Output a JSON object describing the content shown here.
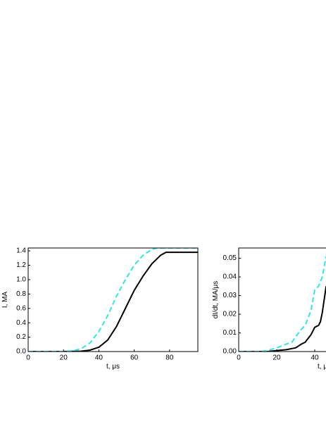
{
  "chart_data": [
    {
      "type": "line",
      "x_label": "t, μs",
      "y_label": "I, MA",
      "xlim": [
        0,
        96
      ],
      "xticks": [
        0,
        20,
        40,
        60,
        80
      ],
      "ylim": [
        0,
        1.44
      ],
      "yticks": [
        {
          "value": 0,
          "label": "0.0"
        },
        0.2,
        0.4,
        0.6,
        0.8,
        {
          "value": 1,
          "label": "1.0"
        },
        1.2,
        1.4
      ],
      "series": [
        {
          "color": "#000000",
          "dashed": false,
          "x": [
            0,
            20,
            30,
            35,
            40,
            45,
            50,
            55,
            60,
            65,
            70,
            75,
            78,
            96
          ],
          "values": [
            0,
            0,
            0.005,
            0.02,
            0.06,
            0.16,
            0.35,
            0.6,
            0.85,
            1.05,
            1.22,
            1.34,
            1.38,
            1.38
          ]
        },
        {
          "color": "#33e6e6",
          "dashed": true,
          "x": [
            0,
            20,
            25,
            30,
            35,
            40,
            45,
            50,
            55,
            60,
            65,
            70,
            73,
            96
          ],
          "values": [
            0,
            0,
            0.01,
            0.04,
            0.12,
            0.28,
            0.5,
            0.77,
            1.0,
            1.2,
            1.34,
            1.42,
            1.44,
            1.44
          ]
        }
      ]
    },
    {
      "type": "line",
      "x_label": "t, μs",
      "y_label": "dI/dt, MA/μs",
      "xlim": [
        0,
        90
      ],
      "xticks": [
        0,
        20,
        40
      ],
      "ylim": [
        0,
        0.0555
      ],
      "yticks": [
        {
          "value": 0,
          "label": "0.00"
        },
        {
          "value": 0.01,
          "label": "0.01"
        },
        {
          "value": 0.02,
          "label": "0.02"
        },
        {
          "value": 0.03,
          "label": "0.03"
        },
        {
          "value": 0.04,
          "label": "0.04"
        },
        {
          "value": 0.05,
          "label": "0.05"
        }
      ],
      "series": [
        {
          "color": "#000000",
          "dashed": false,
          "x": [
            0,
            15,
            20,
            25,
            30,
            33,
            35,
            38,
            40,
            42,
            43,
            44,
            46
          ],
          "values": [
            0,
            0,
            0.0005,
            0.001,
            0.002,
            0.004,
            0.005,
            0.009,
            0.013,
            0.014,
            0.016,
            0.021,
            0.035
          ]
        },
        {
          "color": "#33e6e6",
          "dashed": true,
          "x": [
            0,
            12,
            15,
            20,
            25,
            28,
            30,
            33,
            35,
            38,
            40,
            42,
            44,
            46
          ],
          "values": [
            0,
            0,
            0.0005,
            0.002,
            0.004,
            0.005,
            0.008,
            0.012,
            0.014,
            0.022,
            0.033,
            0.035,
            0.04,
            0.051
          ]
        }
      ]
    }
  ]
}
